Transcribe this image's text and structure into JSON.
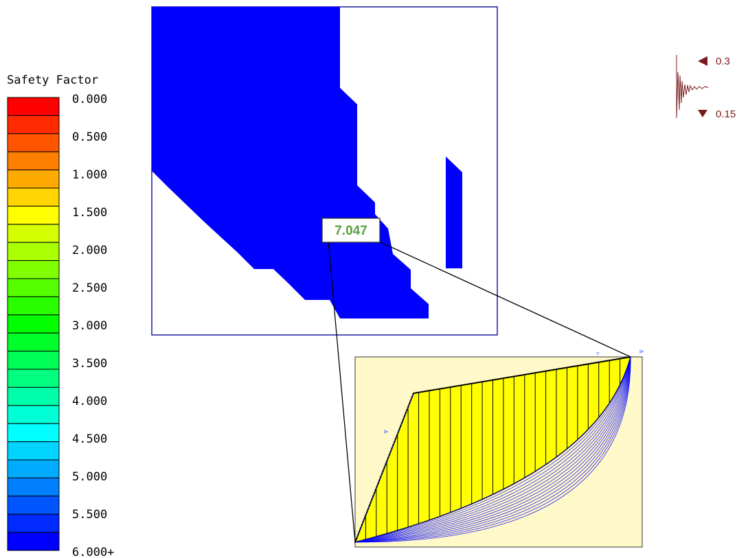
{
  "legend": {
    "title": "Safety Factor",
    "colors": [
      "#ff0000",
      "#ff2a00",
      "#ff5500",
      "#ff8000",
      "#ffaa00",
      "#ffd400",
      "#ffff00",
      "#d4ff00",
      "#aaff00",
      "#80ff00",
      "#55ff00",
      "#2aff00",
      "#00ff00",
      "#00ff2a",
      "#00ff55",
      "#00ff80",
      "#00ffaa",
      "#00ffd4",
      "#00ffff",
      "#00d4ff",
      "#00aaff",
      "#0080ff",
      "#0055ff",
      "#002aff",
      "#0000ff"
    ],
    "ticks": [
      "0.000",
      "0.500",
      "1.000",
      "1.500",
      "2.000",
      "2.500",
      "3.000",
      "3.500",
      "4.000",
      "4.500",
      "5.000",
      "5.500",
      "6.000+"
    ]
  },
  "critical": {
    "fs_label": "7.047",
    "label_color": "#5aa040"
  },
  "zone": {
    "fill_color": "#0000ff",
    "frame_color": "#1a1aa0"
  },
  "slope": {
    "mass_color": "#ffff00",
    "ground_color": "#fff8c8",
    "slip_color": "#0000ff",
    "slice_count": 26
  },
  "seismic": {
    "horizontal_label": "0.3",
    "vertical_label": "0.15",
    "color": "#7a1a1a"
  }
}
